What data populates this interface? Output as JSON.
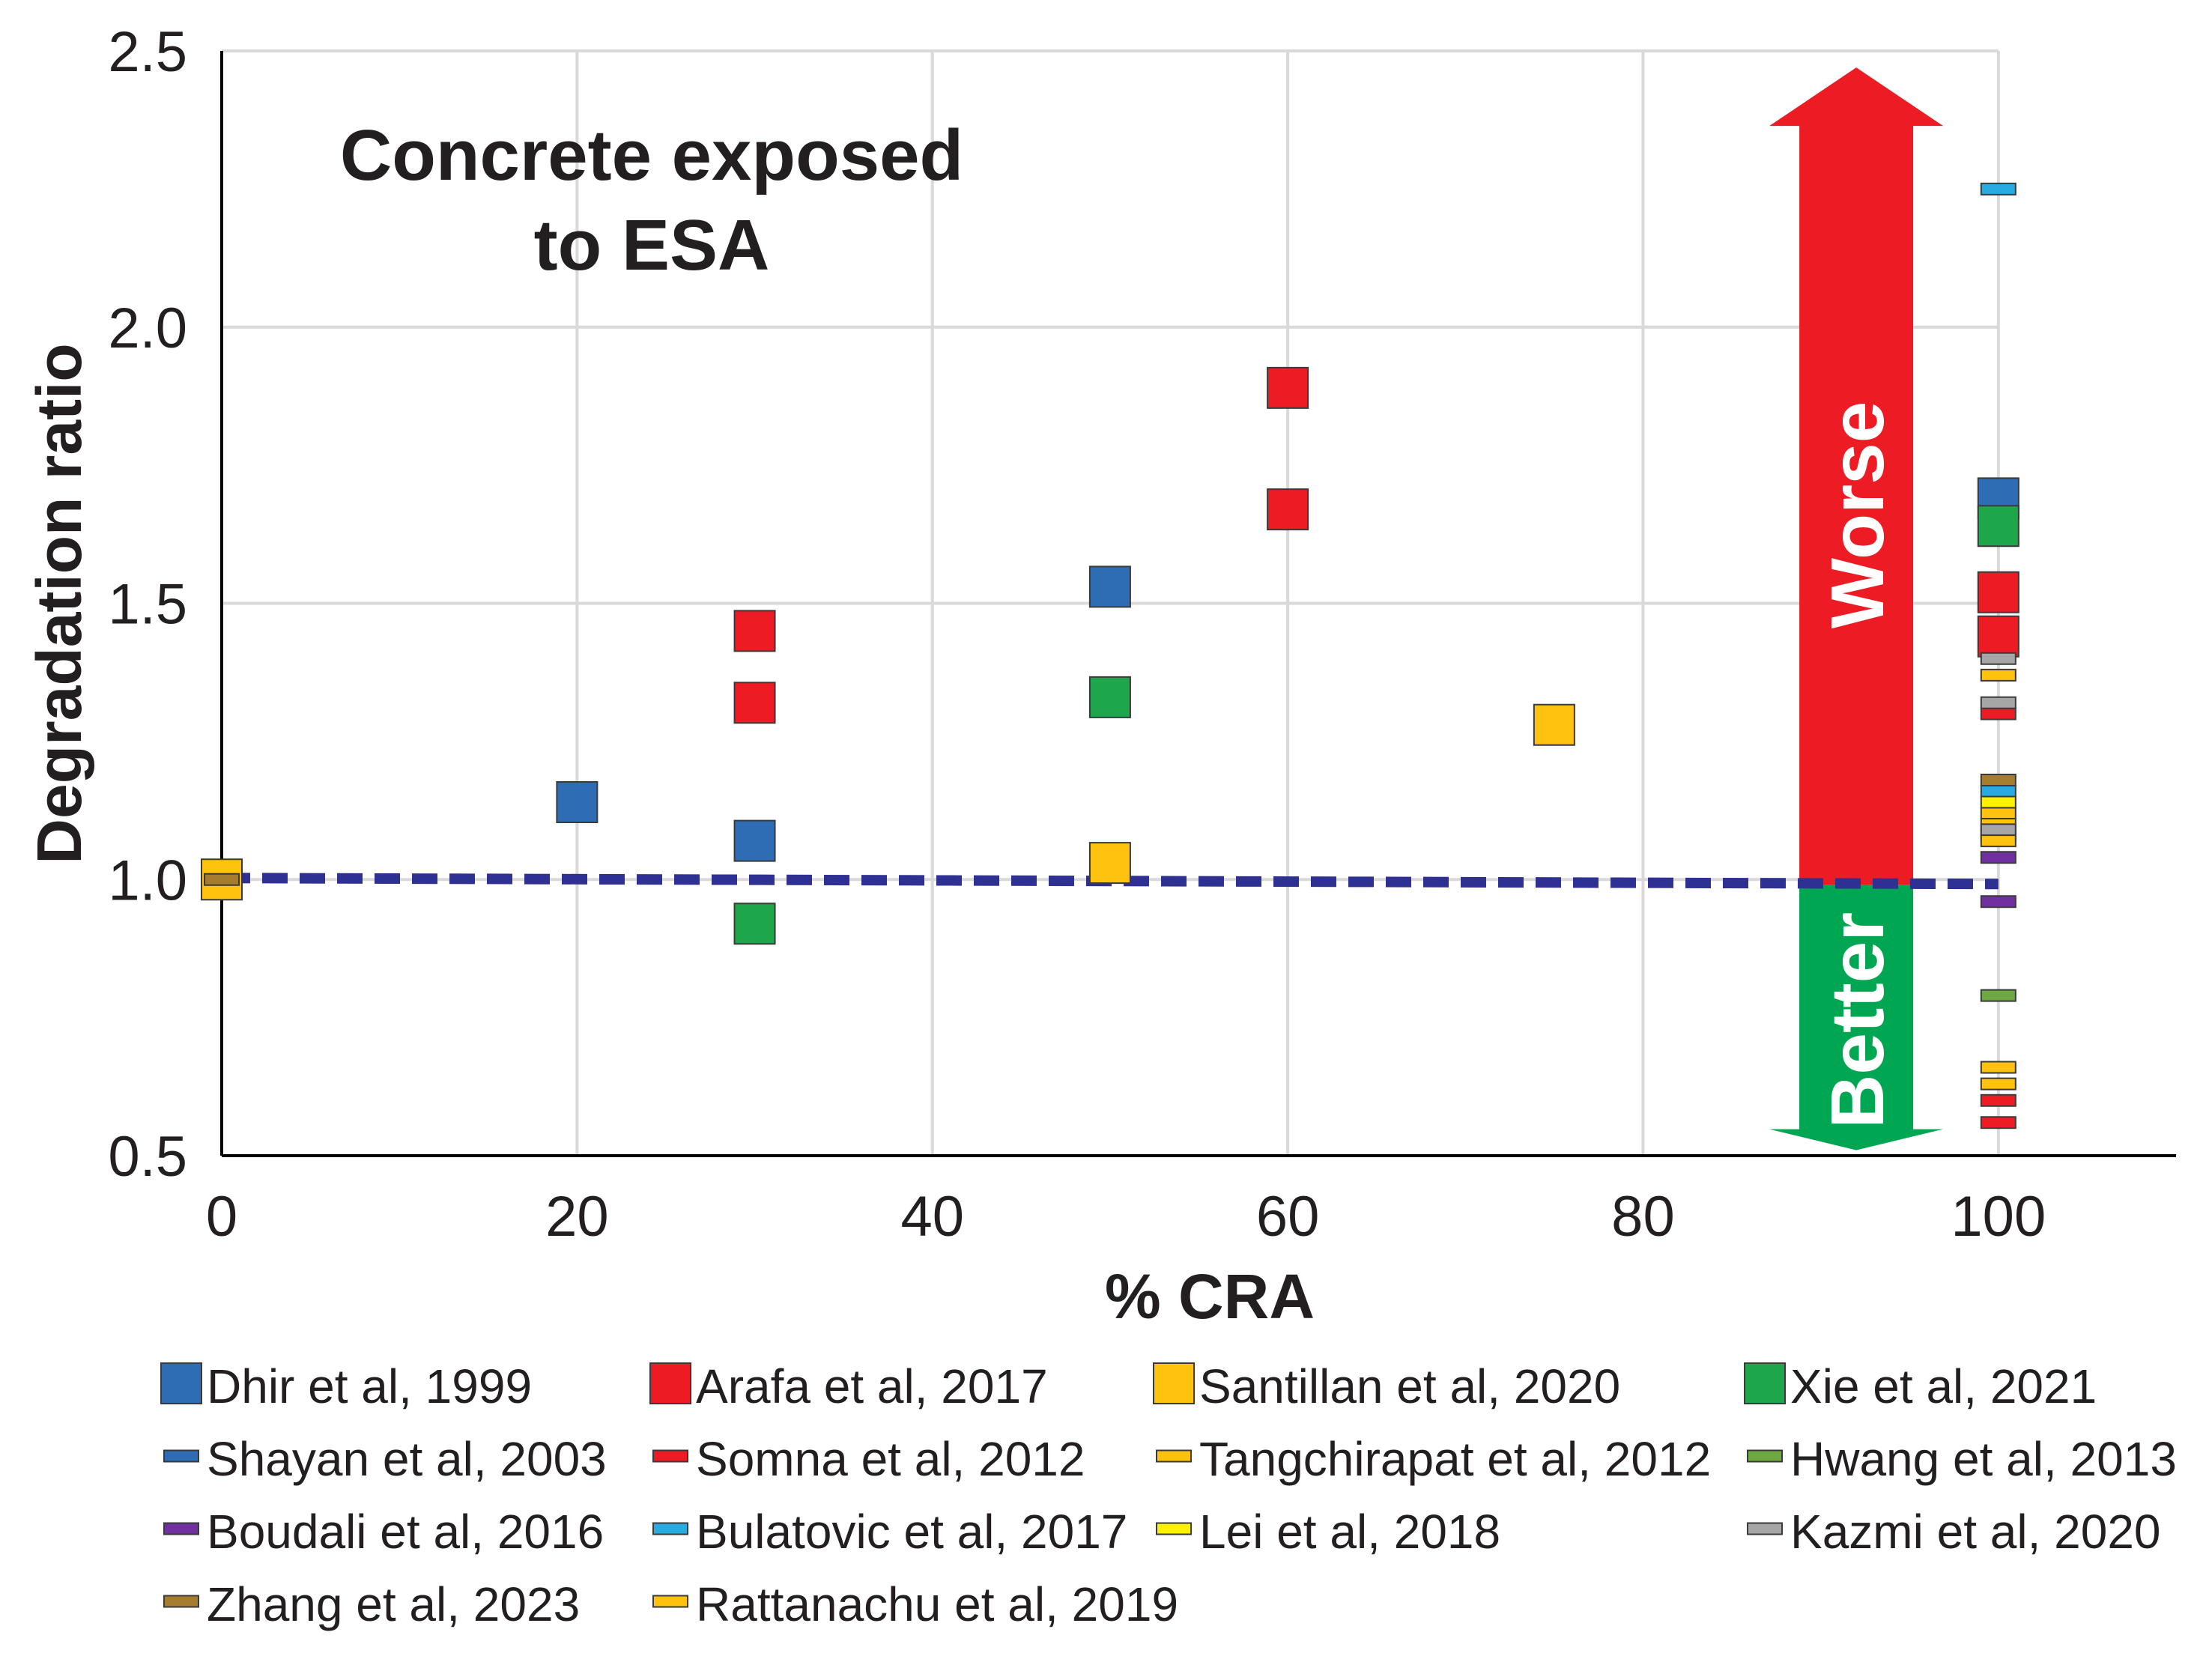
{
  "chart_data": {
    "type": "scatter",
    "title": "",
    "annotation_lines": [
      "Concrete exposed",
      "to ESA"
    ],
    "xlabel": "% CRA",
    "ylabel": "Degradation ratio",
    "xlim": [
      0,
      110
    ],
    "ylim": [
      0.5,
      2.5
    ],
    "x_ticks": [
      0,
      20,
      40,
      60,
      80,
      100
    ],
    "x_tick_labels": [
      "0",
      "20",
      "40",
      "60",
      "80",
      "100"
    ],
    "y_ticks": [
      0.5,
      1.0,
      1.5,
      2.0,
      2.5
    ],
    "y_tick_labels": [
      "0.5",
      "1.0",
      "1.5",
      "2.0",
      "2.5"
    ],
    "grid": true,
    "reference_line": {
      "y": 1.0,
      "style": "dashed",
      "color": "#2e3192"
    },
    "worse_arrow": {
      "label": "Worse",
      "color": "#ed1c24",
      "x": 92,
      "y_from": 0.99,
      "y_to": 2.47
    },
    "better_arrow": {
      "label": "Better",
      "color": "#00a651",
      "x": 92,
      "y_from": 0.99,
      "y_to": 0.51
    },
    "legend_position": "bottom",
    "series": [
      {
        "name": "Dhir et al, 1999",
        "marker": "square",
        "color": "#2e6db4",
        "points": [
          [
            20,
            1.14
          ],
          [
            30,
            1.07
          ],
          [
            50,
            1.53
          ],
          [
            100,
            1.69
          ]
        ]
      },
      {
        "name": "Arafa et al, 2017",
        "marker": "square",
        "color": "#ed1c24",
        "points": [
          [
            30,
            1.45
          ],
          [
            30,
            1.32
          ],
          [
            60,
            1.89
          ],
          [
            60,
            1.67
          ],
          [
            100,
            1.52
          ],
          [
            100,
            1.44
          ]
        ]
      },
      {
        "name": "Santillan et al, 2020",
        "marker": "square",
        "color": "#ffc20e",
        "points": [
          [
            0,
            1.0
          ],
          [
            50,
            1.03
          ],
          [
            75,
            1.28
          ]
        ]
      },
      {
        "name": "Xie et al, 2021",
        "marker": "square",
        "color": "#1ea64b",
        "points": [
          [
            30,
            0.92
          ],
          [
            50,
            1.33
          ],
          [
            100,
            1.64
          ]
        ]
      },
      {
        "name": "Shayan et al, 2003",
        "marker": "dash",
        "color": "#2e6db4",
        "points": [
          [
            100,
            1.08
          ]
        ]
      },
      {
        "name": "Somna et al, 2012",
        "marker": "dash",
        "color": "#ed1c24",
        "points": [
          [
            100,
            1.3
          ],
          [
            100,
            0.6
          ],
          [
            100,
            0.56
          ]
        ]
      },
      {
        "name": "Tangchirapat et al, 2012",
        "marker": "dash",
        "color": "#ffc20e",
        "points": [
          [
            100,
            1.37
          ],
          [
            100,
            1.12
          ],
          [
            100,
            1.1
          ],
          [
            100,
            0.66
          ],
          [
            100,
            0.63
          ]
        ]
      },
      {
        "name": "Hwang et al, 2013",
        "marker": "dash",
        "color": "#6ea842",
        "points": [
          [
            100,
            0.79
          ]
        ]
      },
      {
        "name": "Boudali et al, 2016",
        "marker": "dash",
        "color": "#7030a0",
        "points": [
          [
            100,
            1.04
          ],
          [
            100,
            0.96
          ]
        ]
      },
      {
        "name": "Bulatovic et al, 2017",
        "marker": "dash",
        "color": "#29abe2",
        "points": [
          [
            100,
            2.25
          ],
          [
            100,
            1.16
          ]
        ]
      },
      {
        "name": "Lei et al, 2018",
        "marker": "dash",
        "color": "#fff200",
        "points": [
          [
            100,
            1.14
          ]
        ]
      },
      {
        "name": "Kazmi et al, 2020",
        "marker": "dash",
        "color": "#a6a6a6",
        "points": [
          [
            100,
            1.4
          ],
          [
            100,
            1.32
          ],
          [
            100,
            1.09
          ]
        ]
      },
      {
        "name": "Zhang et al, 2023",
        "marker": "dash",
        "color": "#a67c2e",
        "points": [
          [
            0,
            1.0
          ],
          [
            100,
            1.18
          ]
        ]
      },
      {
        "name": "Rattanachu et al, 2019",
        "marker": "dash",
        "color": "#ffc20e",
        "points": [
          [
            100,
            1.07
          ]
        ]
      }
    ]
  }
}
